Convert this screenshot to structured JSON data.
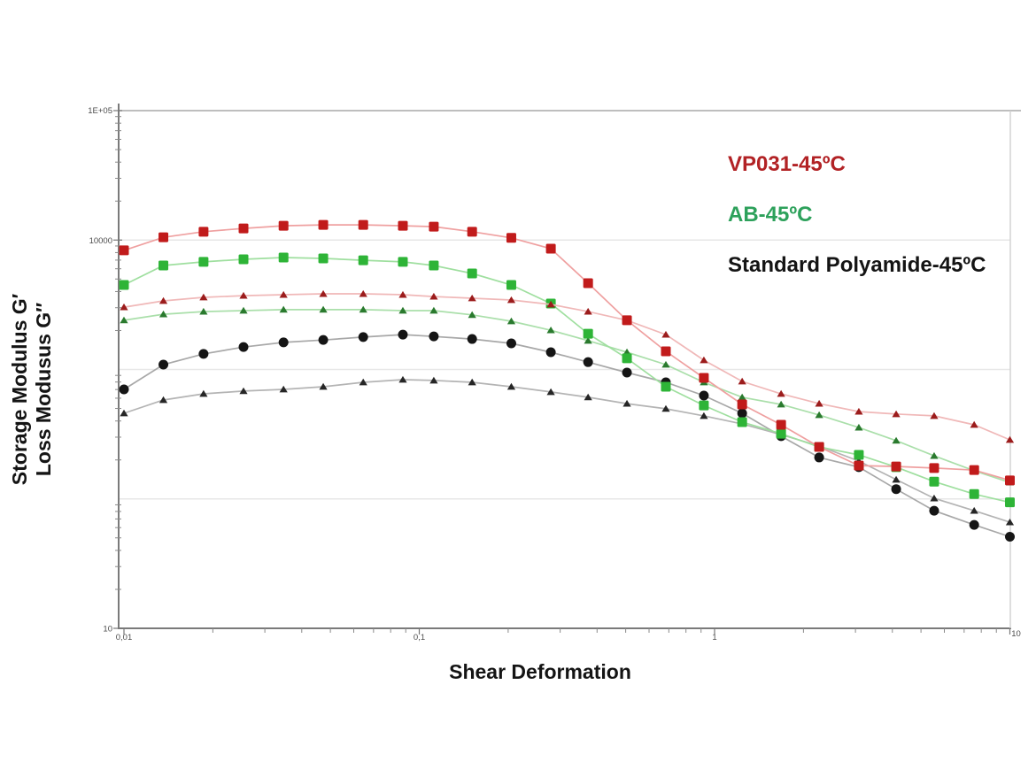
{
  "figure": {
    "background": "#ffffff"
  },
  "legend": {
    "entries": [
      {
        "label": "VP031-45ºC",
        "color": "#b22225"
      },
      {
        "label": "AB-45ºC",
        "color": "#2da15b"
      },
      {
        "label": "Standard Polyamide-45ºC",
        "color": "#141414"
      }
    ]
  },
  "axes": {
    "x": {
      "title": "Shear Deformation",
      "scale": "log",
      "min": 0.01,
      "max": 10,
      "ticks": [
        {
          "value": 0.01,
          "label": "0,01"
        },
        {
          "value": 0.1,
          "label": "0,1"
        },
        {
          "value": 1,
          "label": "1"
        },
        {
          "value": 10,
          "label": "10"
        }
      ]
    },
    "y": {
      "title_line1": "Storage Modulus G′",
      "title_line2": "Loss Modusus G″",
      "scale": "log",
      "min": 10,
      "max": 100000,
      "ticks": [
        {
          "value": 100000,
          "label": "1E+05"
        },
        {
          "value": 10000,
          "label": "10000"
        },
        {
          "value": 10,
          "label": "10"
        }
      ],
      "gridlines": [
        10000,
        1000,
        100
      ]
    }
  },
  "chart_data": {
    "type": "line",
    "title": "",
    "xlabel": "Shear Deformation",
    "ylabel": "Storage Modulus G′ / Loss Modusus G″",
    "x_scale": "log",
    "y_scale": "log",
    "xlim": [
      0.01,
      10
    ],
    "ylim": [
      10,
      100000
    ],
    "grid": "horizontal-major",
    "legend_position": "top-right",
    "x": [
      0.01,
      0.0136,
      0.0186,
      0.0254,
      0.0347,
      0.0473,
      0.0646,
      0.088,
      0.112,
      0.151,
      0.205,
      0.279,
      0.373,
      0.505,
      0.684,
      0.92,
      1.24,
      1.68,
      2.26,
      3.08,
      4.12,
      5.54,
      7.57,
      10
    ],
    "series": [
      {
        "name": "VP031-45ºC G′",
        "marker": "square",
        "marker_color": "#c11b1b",
        "line_color": "#efa0a0",
        "values": [
          8320,
          10500,
          11600,
          12300,
          12900,
          13100,
          13100,
          12900,
          12700,
          11600,
          10400,
          8580,
          4640,
          2400,
          1380,
          861,
          537,
          374,
          252,
          181,
          178,
          173,
          167,
          139
        ]
      },
      {
        "name": "VP031-45ºC G″",
        "marker": "triangle",
        "marker_color": "#9c1c1c",
        "line_color": "#f0b8b8",
        "values": [
          3030,
          3390,
          3610,
          3720,
          3780,
          3840,
          3840,
          3780,
          3660,
          3550,
          3440,
          3180,
          2800,
          2400,
          1860,
          1180,
          809,
          649,
          545,
          473,
          452,
          438,
          374,
          286
        ]
      },
      {
        "name": "AB-45ºC G′",
        "marker": "square",
        "marker_color": "#2eb437",
        "line_color": "#9fdf9f",
        "values": [
          4500,
          6360,
          6780,
          7100,
          7330,
          7210,
          6980,
          6780,
          6360,
          5520,
          4500,
          3230,
          1890,
          1220,
          736,
          528,
          392,
          319,
          252,
          219,
          176,
          136,
          109,
          94
        ]
      },
      {
        "name": "AB-45ºC G″",
        "marker": "triangle",
        "marker_color": "#2a7a2e",
        "line_color": "#aadfaa",
        "values": [
          2400,
          2670,
          2800,
          2850,
          2900,
          2900,
          2900,
          2850,
          2850,
          2640,
          2360,
          2010,
          1670,
          1360,
          1090,
          796,
          610,
          537,
          445,
          356,
          282,
          215,
          165,
          134
        ]
      },
      {
        "name": "Standard Polyamide-45ºC G′",
        "marker": "circle",
        "marker_color": "#151515",
        "line_color": "#a8a8a8",
        "values": [
          702,
          1090,
          1320,
          1490,
          1620,
          1690,
          1780,
          1860,
          1800,
          1720,
          1590,
          1360,
          1140,
          947,
          796,
          628,
          459,
          305,
          209,
          176,
          119,
          81,
          63,
          51
        ]
      },
      {
        "name": "Standard Polyamide-45ºC G″",
        "marker": "triangle",
        "marker_color": "#262626",
        "line_color": "#b4b4b4",
        "values": [
          459,
          581,
          649,
          681,
          702,
          736,
          796,
          834,
          822,
          796,
          736,
          670,
          610,
          545,
          497,
          438,
          379,
          314,
          256,
          196,
          141,
          101,
          81,
          66
        ]
      }
    ]
  }
}
